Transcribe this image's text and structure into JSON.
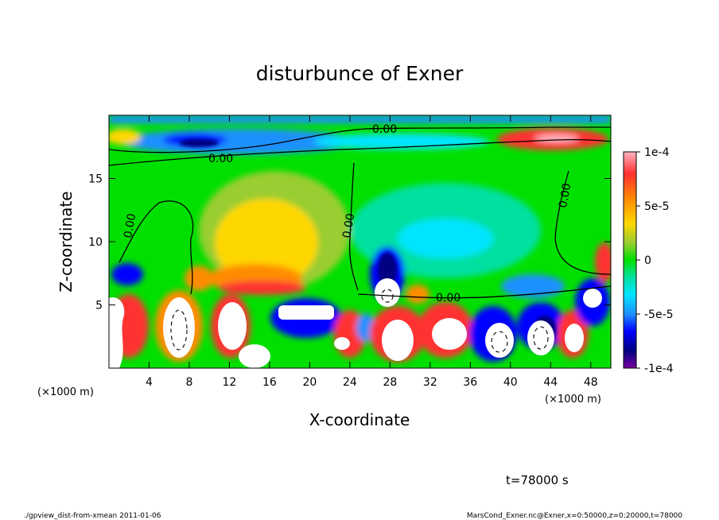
{
  "chart_data": {
    "type": "heatmap",
    "title": "disturbunce of Exner",
    "xlabel": "X-coordinate",
    "ylabel": "Z-coordinate",
    "x_unit": "(×1000 m)",
    "y_unit": "(×1000 m)",
    "xlim": [
      0,
      50
    ],
    "ylim": [
      0,
      20
    ],
    "x_ticks": [
      4,
      8,
      12,
      16,
      20,
      24,
      28,
      32,
      36,
      40,
      44,
      48
    ],
    "y_ticks": [
      5,
      10,
      15
    ],
    "colorbar": {
      "range": [
        -0.0001,
        0.0001
      ],
      "tick_values": [
        0.0001,
        5e-05,
        0,
        -5e-05,
        -0.0001
      ],
      "tick_labels": [
        "1e-4",
        "5e-5",
        "0",
        "-5e-5",
        "-1e-4"
      ],
      "colors": [
        "#ffb6c1",
        "#ff3030",
        "#ff8c00",
        "#ffd700",
        "#9acd32",
        "#00e000",
        "#00e0a0",
        "#00e5ff",
        "#1e90ff",
        "#0000ff",
        "#000080",
        "#7b00a0"
      ]
    },
    "contour_labels": [
      "0.00",
      "0.00",
      "0.00",
      "0.00",
      "0.00",
      "0.00"
    ],
    "grid": false,
    "time_label": "t=78000 s"
  },
  "footer": {
    "left": "./gpview_dist-from-xmean  2011-01-06",
    "right": "MarsCond_Exner.nc@Exner,x=0:50000,z=0:20000,t=78000"
  },
  "colors": {
    "high": "#ff3030",
    "zero": "#00e000",
    "low": "#0000ff",
    "contour": "#000000"
  }
}
